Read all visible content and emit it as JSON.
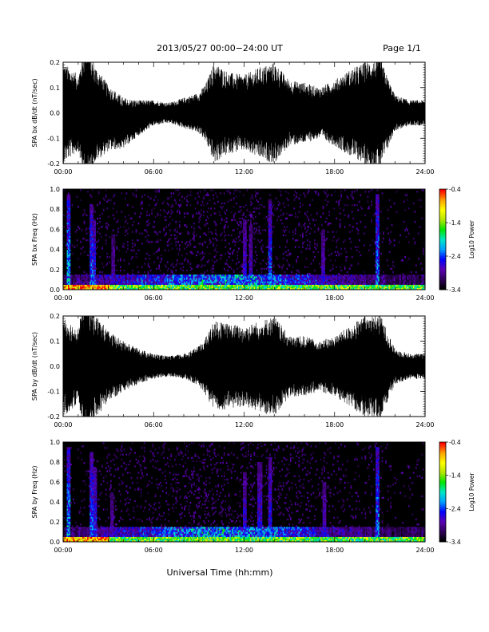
{
  "header": {
    "title": "2013/05/27  00:00−24:00 UT",
    "page": "Page 1/1"
  },
  "xlabel": "Universal Time (hh:mm)",
  "x_ticks": [
    "00:00",
    "06:00",
    "12:00",
    "18:00",
    "24:00"
  ],
  "colorbar": {
    "label": "Log10 Power",
    "ticks": [
      "-0.4",
      "-1.4",
      "-2.4",
      "-3.4"
    ],
    "range": [
      -3.4,
      -0.4
    ],
    "colormap": [
      "#000000",
      "#30005a",
      "#5a00b4",
      "#0000ff",
      "#00a0ff",
      "#00e6c8",
      "#00e600",
      "#b4e600",
      "#ffff00",
      "#ffa000",
      "#ff0000"
    ]
  },
  "chart_data": [
    {
      "type": "line",
      "ylabel": "SPA bx dB/dt (nT/sec)",
      "ylim": [
        -0.2,
        0.2
      ],
      "y_ticks": [
        "0.2",
        "0.1",
        "0.0",
        "-0.1",
        "-0.2"
      ],
      "x_range_hours": [
        0,
        24
      ],
      "series": [
        {
          "x_hours": [
            0,
            1,
            1.5,
            2,
            3,
            4,
            5,
            6,
            7,
            8,
            9,
            9.5,
            10,
            11,
            12,
            13,
            14,
            15,
            16,
            17,
            18,
            19,
            20,
            21,
            22,
            23,
            24
          ],
          "amplitude": [
            0.2,
            0.15,
            0.3,
            0.2,
            0.13,
            0.1,
            0.07,
            0.05,
            0.04,
            0.06,
            0.08,
            0.12,
            0.2,
            0.16,
            0.15,
            0.18,
            0.2,
            0.13,
            0.12,
            0.1,
            0.13,
            0.17,
            0.2,
            0.22,
            0.07,
            0.05,
            0.05
          ],
          "offset": [
            0.0,
            0.0,
            0.0,
            0.0,
            -0.02,
            -0.04,
            -0.02,
            0.0,
            0.0,
            0.0,
            0.0,
            0.0,
            0.0,
            0.0,
            0.0,
            0.0,
            0.0,
            0.0,
            0.0,
            0.0,
            0.0,
            0.0,
            0.0,
            0.0,
            0.0,
            0.0,
            0.0
          ]
        }
      ]
    },
    {
      "type": "heatmap",
      "ylabel": "SPA bx Freq (Hz)",
      "ylim": [
        0.0,
        1.0
      ],
      "y_ticks": [
        "1.0",
        "0.8",
        "0.6",
        "0.4",
        "0.2",
        "0.0"
      ],
      "x_range_hours": [
        0,
        24
      ],
      "z_units": "Log10 Power",
      "zlim": [
        -3.4,
        -0.4
      ],
      "bursts": [
        {
          "x_hours": 0.3,
          "height_hz": 0.95,
          "strength": 0.7
        },
        {
          "x_hours": 1.8,
          "height_hz": 0.85,
          "strength": 0.6
        },
        {
          "x_hours": 2.0,
          "height_hz": 0.7,
          "strength": 0.5
        },
        {
          "x_hours": 3.3,
          "height_hz": 0.55,
          "strength": 0.35
        },
        {
          "x_hours": 12.0,
          "height_hz": 0.7,
          "strength": 0.45
        },
        {
          "x_hours": 12.4,
          "height_hz": 0.65,
          "strength": 0.4
        },
        {
          "x_hours": 13.7,
          "height_hz": 0.9,
          "strength": 0.55
        },
        {
          "x_hours": 17.2,
          "height_hz": 0.6,
          "strength": 0.4
        },
        {
          "x_hours": 20.8,
          "height_hz": 0.95,
          "strength": 0.65
        }
      ]
    },
    {
      "type": "line",
      "ylabel": "SPA by dB/dt (nT/sec)",
      "ylim": [
        -0.2,
        0.2
      ],
      "y_ticks": [
        "0.2",
        "0.1",
        "0.0",
        "-0.1",
        "-0.2"
      ],
      "x_range_hours": [
        0,
        24
      ],
      "series": [
        {
          "x_hours": [
            0,
            1,
            1.5,
            2,
            3,
            4,
            5,
            6,
            7,
            8,
            9,
            9.5,
            10,
            11,
            12,
            13,
            14,
            15,
            16,
            17,
            18,
            19,
            20,
            21,
            22,
            23,
            24
          ],
          "amplitude": [
            0.2,
            0.15,
            0.3,
            0.22,
            0.14,
            0.1,
            0.07,
            0.05,
            0.04,
            0.05,
            0.08,
            0.12,
            0.18,
            0.17,
            0.16,
            0.18,
            0.2,
            0.12,
            0.12,
            0.1,
            0.12,
            0.16,
            0.2,
            0.21,
            0.07,
            0.05,
            0.05
          ],
          "offset": [
            0.0,
            0.0,
            0.0,
            0.0,
            0.0,
            0.0,
            0.0,
            0.0,
            0.0,
            0.0,
            0.0,
            0.0,
            0.0,
            0.0,
            0.0,
            0.0,
            0.0,
            0.0,
            0.0,
            0.0,
            0.0,
            0.0,
            0.0,
            0.0,
            0.0,
            0.0,
            0.0
          ]
        }
      ]
    },
    {
      "type": "heatmap",
      "ylabel": "SPA by Freq (Hz)",
      "ylim": [
        0.0,
        1.0
      ],
      "y_ticks": [
        "1.0",
        "0.8",
        "0.6",
        "0.4",
        "0.2",
        "0.0"
      ],
      "x_range_hours": [
        0,
        24
      ],
      "z_units": "Log10 Power",
      "zlim": [
        -3.4,
        -0.4
      ],
      "bursts": [
        {
          "x_hours": 0.3,
          "height_hz": 0.95,
          "strength": 0.7
        },
        {
          "x_hours": 1.8,
          "height_hz": 0.9,
          "strength": 0.6
        },
        {
          "x_hours": 2.1,
          "height_hz": 0.75,
          "strength": 0.5
        },
        {
          "x_hours": 3.2,
          "height_hz": 0.5,
          "strength": 0.35
        },
        {
          "x_hours": 12.0,
          "height_hz": 0.7,
          "strength": 0.45
        },
        {
          "x_hours": 13.0,
          "height_hz": 0.8,
          "strength": 0.45
        },
        {
          "x_hours": 13.7,
          "height_hz": 0.85,
          "strength": 0.5
        },
        {
          "x_hours": 17.3,
          "height_hz": 0.6,
          "strength": 0.4
        },
        {
          "x_hours": 20.8,
          "height_hz": 0.95,
          "strength": 0.65
        }
      ]
    }
  ]
}
